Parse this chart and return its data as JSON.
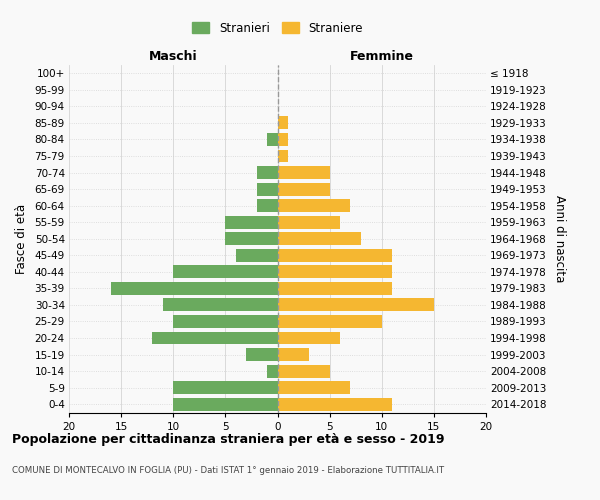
{
  "age_groups": [
    "0-4",
    "5-9",
    "10-14",
    "15-19",
    "20-24",
    "25-29",
    "30-34",
    "35-39",
    "40-44",
    "45-49",
    "50-54",
    "55-59",
    "60-64",
    "65-69",
    "70-74",
    "75-79",
    "80-84",
    "85-89",
    "90-94",
    "95-99",
    "100+"
  ],
  "birth_years": [
    "2014-2018",
    "2009-2013",
    "2004-2008",
    "1999-2003",
    "1994-1998",
    "1989-1993",
    "1984-1988",
    "1979-1983",
    "1974-1978",
    "1969-1973",
    "1964-1968",
    "1959-1963",
    "1954-1958",
    "1949-1953",
    "1944-1948",
    "1939-1943",
    "1934-1938",
    "1929-1933",
    "1924-1928",
    "1919-1923",
    "≤ 1918"
  ],
  "maschi": [
    10,
    10,
    1,
    3,
    12,
    10,
    11,
    16,
    10,
    4,
    5,
    5,
    2,
    2,
    2,
    0,
    1,
    0,
    0,
    0,
    0
  ],
  "femmine": [
    11,
    7,
    5,
    3,
    6,
    10,
    15,
    11,
    11,
    11,
    8,
    6,
    7,
    5,
    5,
    1,
    1,
    1,
    0,
    0,
    0
  ],
  "male_color": "#6aaa5e",
  "female_color": "#f5b731",
  "background_color": "#f9f9f9",
  "grid_color": "#cccccc",
  "title": "Popolazione per cittadinanza straniera per età e sesso - 2019",
  "subtitle": "COMUNE DI MONTECALVO IN FOGLIA (PU) - Dati ISTAT 1° gennaio 2019 - Elaborazione TUTTITALIA.IT",
  "ylabel_left": "Fasce di età",
  "ylabel_right": "Anni di nascita",
  "xlabel_left": "Maschi",
  "xlabel_right": "Femmine",
  "legend_male": "Stranieri",
  "legend_female": "Straniere",
  "xlim": 20,
  "center_line_color": "#999999"
}
